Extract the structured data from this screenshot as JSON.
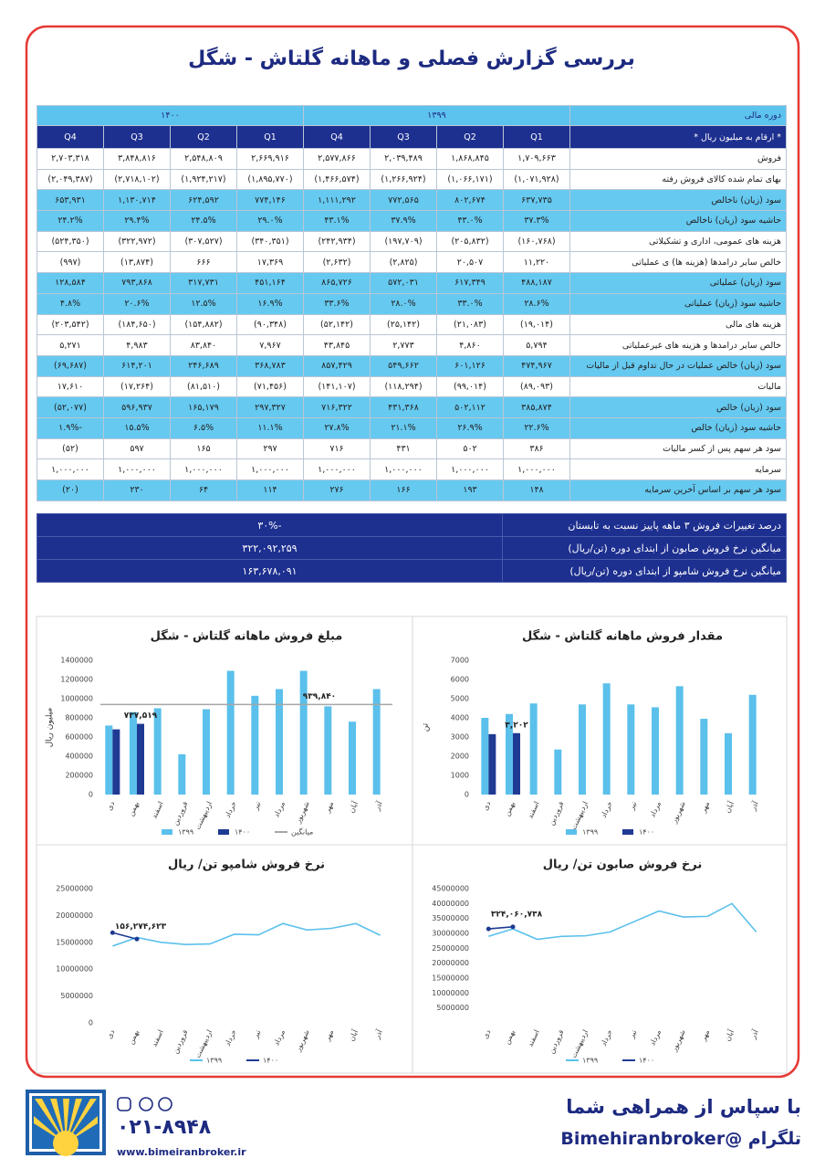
{
  "title": "بررسی گزارش فصلی و ماهانه گلتاش - شگل",
  "table": {
    "header": [
      "دوره مالی",
      "۱۳۹۹",
      "۱۴۰۰"
    ],
    "subheader": [
      "* ارقام به میلیون ریال *",
      "Q1",
      "Q2",
      "Q3",
      "Q4",
      "Q1",
      "Q2",
      "Q3",
      "Q4"
    ],
    "rows": [
      [
        "فروش",
        "۱,۷۰۹,۶۶۳",
        "۱,۸۶۸,۸۴۵",
        "۲,۰۳۹,۴۸۹",
        "۲,۵۷۷,۸۶۶",
        "۲,۶۶۹,۹۱۶",
        "۲,۵۴۸,۸۰۹",
        "۳,۸۴۸,۸۱۶",
        "۲,۷۰۳,۳۱۸"
      ],
      [
        "بهای تمام شده کالای فروش رفته",
        "(۱,۰۷۱,۹۲۸)",
        "(۱,۰۶۶,۱۷۱)",
        "(۱,۲۶۶,۹۲۴)",
        "(۱,۴۶۶,۵۷۴)",
        "(۱,۸۹۵,۷۷۰)",
        "(۱,۹۲۴,۲۱۷)",
        "(۲,۷۱۸,۱۰۲)",
        "(۲,۰۴۹,۳۸۷)"
      ],
      [
        "سود (زیان) ناخالص",
        "۶۳۷,۷۳۵",
        "۸۰۲,۶۷۴",
        "۷۷۲,۵۶۵",
        "۱,۱۱۱,۲۹۲",
        "۷۷۴,۱۴۶",
        "۶۲۴,۵۹۲",
        "۱,۱۳۰,۷۱۴",
        "۶۵۳,۹۳۱"
      ],
      [
        "حاشیه سود (زیان) ناخالص",
        "۳۷.۳%",
        "۴۳.۰%",
        "۳۷.۹%",
        "۴۳.۱%",
        "۲۹.۰%",
        "۲۴.۵%",
        "۲۹.۴%",
        "۲۴.۲%"
      ],
      [
        "هزینه های عمومی، اداری و تشکیلاتی",
        "(۱۶۰,۷۶۸)",
        "(۲۰۵,۸۳۲)",
        "(۱۹۷,۷۰۹)",
        "(۲۴۲,۹۳۴)",
        "(۳۴۰,۳۵۱)",
        "(۳۰۷,۵۲۷)",
        "(۳۲۲,۹۷۲)",
        "(۵۲۴,۳۵۰)"
      ],
      [
        "خالص سایر درامدها (هزینه ها) ی عملیاتی",
        "۱۱,۲۲۰",
        "۲۰,۵۰۷",
        "(۲,۸۲۵)",
        "(۲,۶۳۲)",
        "۱۷,۳۶۹",
        "۶۶۶",
        "(۱۳,۸۷۴)",
        "(۹۹۷)"
      ],
      [
        "سود (زیان) عملیاتی",
        "۴۸۸,۱۸۷",
        "۶۱۷,۳۴۹",
        "۵۷۲,۰۳۱",
        "۸۶۵,۷۲۶",
        "۴۵۱,۱۶۴",
        "۳۱۷,۷۳۱",
        "۷۹۳,۸۶۸",
        "۱۲۸,۵۸۴"
      ],
      [
        "حاشیه سود (زیان) عملیاتی",
        "۲۸.۶%",
        "۳۳.۰%",
        "۲۸.۰%",
        "۳۳.۶%",
        "۱۶.۹%",
        "۱۲.۵%",
        "۲۰.۶%",
        "۴.۸%"
      ],
      [
        "هزینه های مالی",
        "(۱۹,۰۱۴)",
        "(۲۱,۰۸۳)",
        "(۲۵,۱۴۲)",
        "(۵۲,۱۴۲)",
        "(۹۰,۳۴۸)",
        "(۱۵۴,۸۸۲)",
        "(۱۸۴,۶۵۰)",
        "(۲۰۳,۵۴۲)"
      ],
      [
        "خالص سایر درامدها و هزینه های غیرعملیاتی",
        "۵,۷۹۴",
        "۴,۸۶۰",
        "۲,۷۷۳",
        "۴۳,۸۴۵",
        "۷,۹۶۷",
        "۸۳,۸۴۰",
        "۴,۹۸۳",
        "۵,۲۷۱"
      ],
      [
        "سود (زیان) خالص عملیات در حال تداوم قبل از مالیات",
        "۴۷۴,۹۶۷",
        "۶۰۱,۱۲۶",
        "۵۴۹,۶۶۲",
        "۸۵۷,۴۲۹",
        "۳۶۸,۷۸۳",
        "۲۴۶,۶۸۹",
        "۶۱۴,۲۰۱",
        "(۶۹,۶۸۷)"
      ],
      [
        "مالیات",
        "(۸۹,۰۹۳)",
        "(۹۹,۰۱۴)",
        "(۱۱۸,۲۹۴)",
        "(۱۴۱,۱۰۷)",
        "(۷۱,۴۵۶)",
        "(۸۱,۵۱۰)",
        "(۱۷,۲۶۴)",
        "۱۷,۶۱۰"
      ],
      [
        "سود (زیان) خالص",
        "۳۸۵,۸۷۴",
        "۵۰۲,۱۱۲",
        "۴۳۱,۳۶۸",
        "۷۱۶,۳۲۲",
        "۲۹۷,۳۲۷",
        "۱۶۵,۱۷۹",
        "۵۹۶,۹۳۷",
        "(۵۲,۰۷۷)"
      ],
      [
        "حاشیه سود (زیان) خالص",
        "۲۲.۶%",
        "۲۶.۹%",
        "۲۱.۱%",
        "۲۷.۸%",
        "۱۱.۱%",
        "۶.۵%",
        "۱۵.۵%",
        "-۱.۹%"
      ],
      [
        "سود هر سهم پس از کسر مالیات",
        "۳۸۶",
        "۵۰۲",
        "۴۳۱",
        "۷۱۶",
        "۲۹۷",
        "۱۶۵",
        "۵۹۷",
        "(۵۲)"
      ],
      [
        "سرمایه",
        "۱,۰۰۰,۰۰۰",
        "۱,۰۰۰,۰۰۰",
        "۱,۰۰۰,۰۰۰",
        "۱,۰۰۰,۰۰۰",
        "۱,۰۰۰,۰۰۰",
        "۱,۰۰۰,۰۰۰",
        "۱,۰۰۰,۰۰۰",
        "۱,۰۰۰,۰۰۰"
      ],
      [
        "سود هر سهم بر اساس آخرین سرمایه",
        "۱۴۸",
        "۱۹۳",
        "۱۶۶",
        "۲۷۶",
        "۱۱۴",
        "۶۴",
        "۲۳۰",
        "(۲۰)"
      ]
    ]
  },
  "summary": [
    [
      "درصد تغییرات فروش ۳ ماهه پاییز نسبت به تابستان",
      "-۳۰%"
    ],
    [
      "میانگین نرخ فروش صابون از ابتدای دوره (تن/ریال)",
      "۳۲۲,۰۹۲,۲۵۹"
    ],
    [
      "میانگین نرخ فروش شامپو  از ابتدای دوره (تن/ریال)",
      "۱۶۳,۶۷۸,۰۹۱"
    ]
  ],
  "chart_data": [
    {
      "type": "bar",
      "title": "مبلغ فروش ماهانه گلتاش - شگل",
      "y_label": "میلیون ریال",
      "categories": [
        "دی",
        "بهمن",
        "اسفند",
        "فروردین",
        "اردیبهشت",
        "خرداد",
        "تیر",
        "مرداد",
        "شهریور",
        "مهر",
        "آبان",
        "آذر"
      ],
      "series": [
        {
          "name": "۱۳۹۹",
          "color": "#5bc0eb",
          "values": [
            720000,
            860000,
            900000,
            420000,
            890000,
            1290000,
            1030000,
            1100000,
            1290000,
            920000,
            760000,
            1100000
          ]
        },
        {
          "name": "۱۴۰۰",
          "color": "#1f3a93",
          "values": [
            680000,
            737519,
            null,
            null,
            null,
            null,
            null,
            null,
            null,
            null,
            null,
            null
          ],
          "value_labels": [
            null,
            "۷۳۷,۵۱۹",
            null,
            null,
            null,
            null,
            null,
            null,
            null,
            null,
            null,
            null
          ]
        }
      ],
      "reference_line": {
        "name": "میانگین",
        "color": "#a6a6a6",
        "value": 939840,
        "value_label": "۹۳۹,۸۴۰"
      },
      "ylim": [
        0,
        1400000
      ],
      "yticks": [
        0,
        200000,
        400000,
        600000,
        800000,
        1000000,
        1200000,
        1400000
      ],
      "grid": false
    },
    {
      "type": "bar",
      "title": "مقدار فروش ماهانه گلتاش - شگل",
      "y_label": "تن",
      "categories": [
        "دی",
        "بهمن",
        "اسفند",
        "فروردین",
        "اردیبهشت",
        "خرداد",
        "تیر",
        "مرداد",
        "شهریور",
        "مهر",
        "آبان",
        "آذر"
      ],
      "series": [
        {
          "name": "۱۳۹۹",
          "color": "#5bc0eb",
          "values": [
            4000,
            4200,
            4750,
            2350,
            4700,
            5800,
            4700,
            4550,
            5650,
            3950,
            3200,
            5200
          ]
        },
        {
          "name": "۱۴۰۰",
          "color": "#1f3a93",
          "values": [
            3150,
            3202,
            null,
            null,
            null,
            null,
            null,
            null,
            null,
            null,
            null,
            null
          ],
          "value_labels": [
            null,
            "۳,۲۰۲",
            null,
            null,
            null,
            null,
            null,
            null,
            null,
            null,
            null,
            null
          ]
        }
      ],
      "ylim": [
        0,
        7000
      ],
      "yticks": [
        0,
        1000,
        2000,
        3000,
        4000,
        5000,
        6000,
        7000
      ],
      "grid": false
    },
    {
      "type": "line",
      "title": "نرخ فروش شامپو  تن/ ریال",
      "categories": [
        "دی",
        "بهمن",
        "اسفند",
        "فروردین",
        "اردیبهشت",
        "خرداد",
        "تیر",
        "مرداد",
        "شهریور",
        "مهر",
        "آبان",
        "آذر"
      ],
      "series": [
        {
          "name": "۱۳۹۹",
          "color": "#5bc0eb",
          "values": [
            14300000,
            15900000,
            15000000,
            14600000,
            14700000,
            16500000,
            16400000,
            18500000,
            17300000,
            17600000,
            18500000,
            16300000
          ]
        },
        {
          "name": "۱۴۰۰",
          "color": "#1f3a93",
          "markers": true,
          "values": [
            16800000,
            15600000,
            null,
            null,
            null,
            null,
            null,
            null,
            null,
            null,
            null,
            null
          ]
        }
      ],
      "annotations": [
        "۱۵۶,۲۷۴,۶۲۳"
      ],
      "ylim": [
        0,
        25000000
      ],
      "yticks": [
        0,
        5000000,
        10000000,
        15000000,
        20000000,
        25000000
      ],
      "grid": false
    },
    {
      "type": "line",
      "title": "نرخ فروش صابون  تن/ ریال",
      "categories": [
        "دی",
        "بهمن",
        "اسفند",
        "فروردین",
        "اردیبهشت",
        "خرداد",
        "تیر",
        "مرداد",
        "شهریور",
        "مهر",
        "آبان",
        "آذر"
      ],
      "series": [
        {
          "name": "۱۳۹۹",
          "color": "#5bc0eb",
          "values": [
            29000000,
            31500000,
            28000000,
            29000000,
            29200000,
            30500000,
            34000000,
            37500000,
            35500000,
            35700000,
            40000000,
            30500000
          ]
        },
        {
          "name": "۱۴۰۰",
          "color": "#1f3a93",
          "markers": true,
          "values": [
            31500000,
            32200000,
            null,
            null,
            null,
            null,
            null,
            null,
            null,
            null,
            null,
            null
          ]
        }
      ],
      "annotations": [
        "۳۲۴,۰۶۰,۷۳۸"
      ],
      "ylim": [
        0,
        45000000
      ],
      "yticks": [
        5000000,
        10000000,
        15000000,
        20000000,
        25000000,
        30000000,
        35000000,
        40000000,
        45000000
      ],
      "grid": false
    }
  ],
  "footer": {
    "thanks": "با سپاس از همراهی شما",
    "telegram": "تلگرام @Bimehiranbroker",
    "phone": "۰۲۱-۸۹۴۸",
    "website": "www.bimeiranbroker.ir"
  }
}
